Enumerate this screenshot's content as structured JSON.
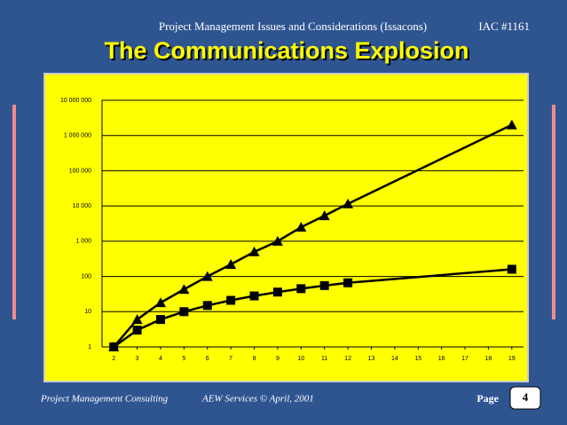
{
  "header": {
    "subtitle": "Project Management Issues and Considerations (Issacons)",
    "code": "IAC #1161",
    "title": "The Communications Explosion"
  },
  "chart_data": {
    "type": "line",
    "log_scale": true,
    "grid": true,
    "background": "#ffff00",
    "xlim": [
      1.5,
      19.5
    ],
    "xticks": [
      2,
      3,
      4,
      5,
      6,
      7,
      8,
      9,
      10,
      11,
      12,
      13,
      14,
      15,
      16,
      17,
      18,
      19
    ],
    "ylim": [
      1,
      10000000
    ],
    "yticks": [
      1,
      10,
      100,
      {
        "value": 1000,
        "label": "1 000"
      },
      {
        "value": 10000,
        "label": "10 000"
      },
      {
        "value": 100000,
        "label": "100 000"
      },
      {
        "value": 1000000,
        "label": "1 000 000"
      },
      {
        "value": 10000000,
        "label": "10 000 000"
      }
    ],
    "series": [
      {
        "marker": "triangle",
        "color": "#000000",
        "x": [
          2,
          3,
          4,
          5,
          6,
          7,
          8,
          9,
          10,
          11,
          12,
          19
        ],
        "values": [
          1,
          6,
          18,
          43,
          100,
          220,
          500,
          1000,
          2500,
          5300,
          11500,
          2000000
        ]
      },
      {
        "marker": "square",
        "color": "#000000",
        "x": [
          2,
          3,
          4,
          5,
          6,
          7,
          8,
          9,
          10,
          11,
          12,
          19
        ],
        "values": [
          1,
          3,
          6,
          10,
          15,
          21,
          28,
          36,
          45,
          55,
          66,
          160
        ]
      }
    ]
  },
  "footer": {
    "left": "Project Management Consulting",
    "center": "AEW  Services © April, 2001",
    "page_label": "Page",
    "page_number": "4"
  }
}
